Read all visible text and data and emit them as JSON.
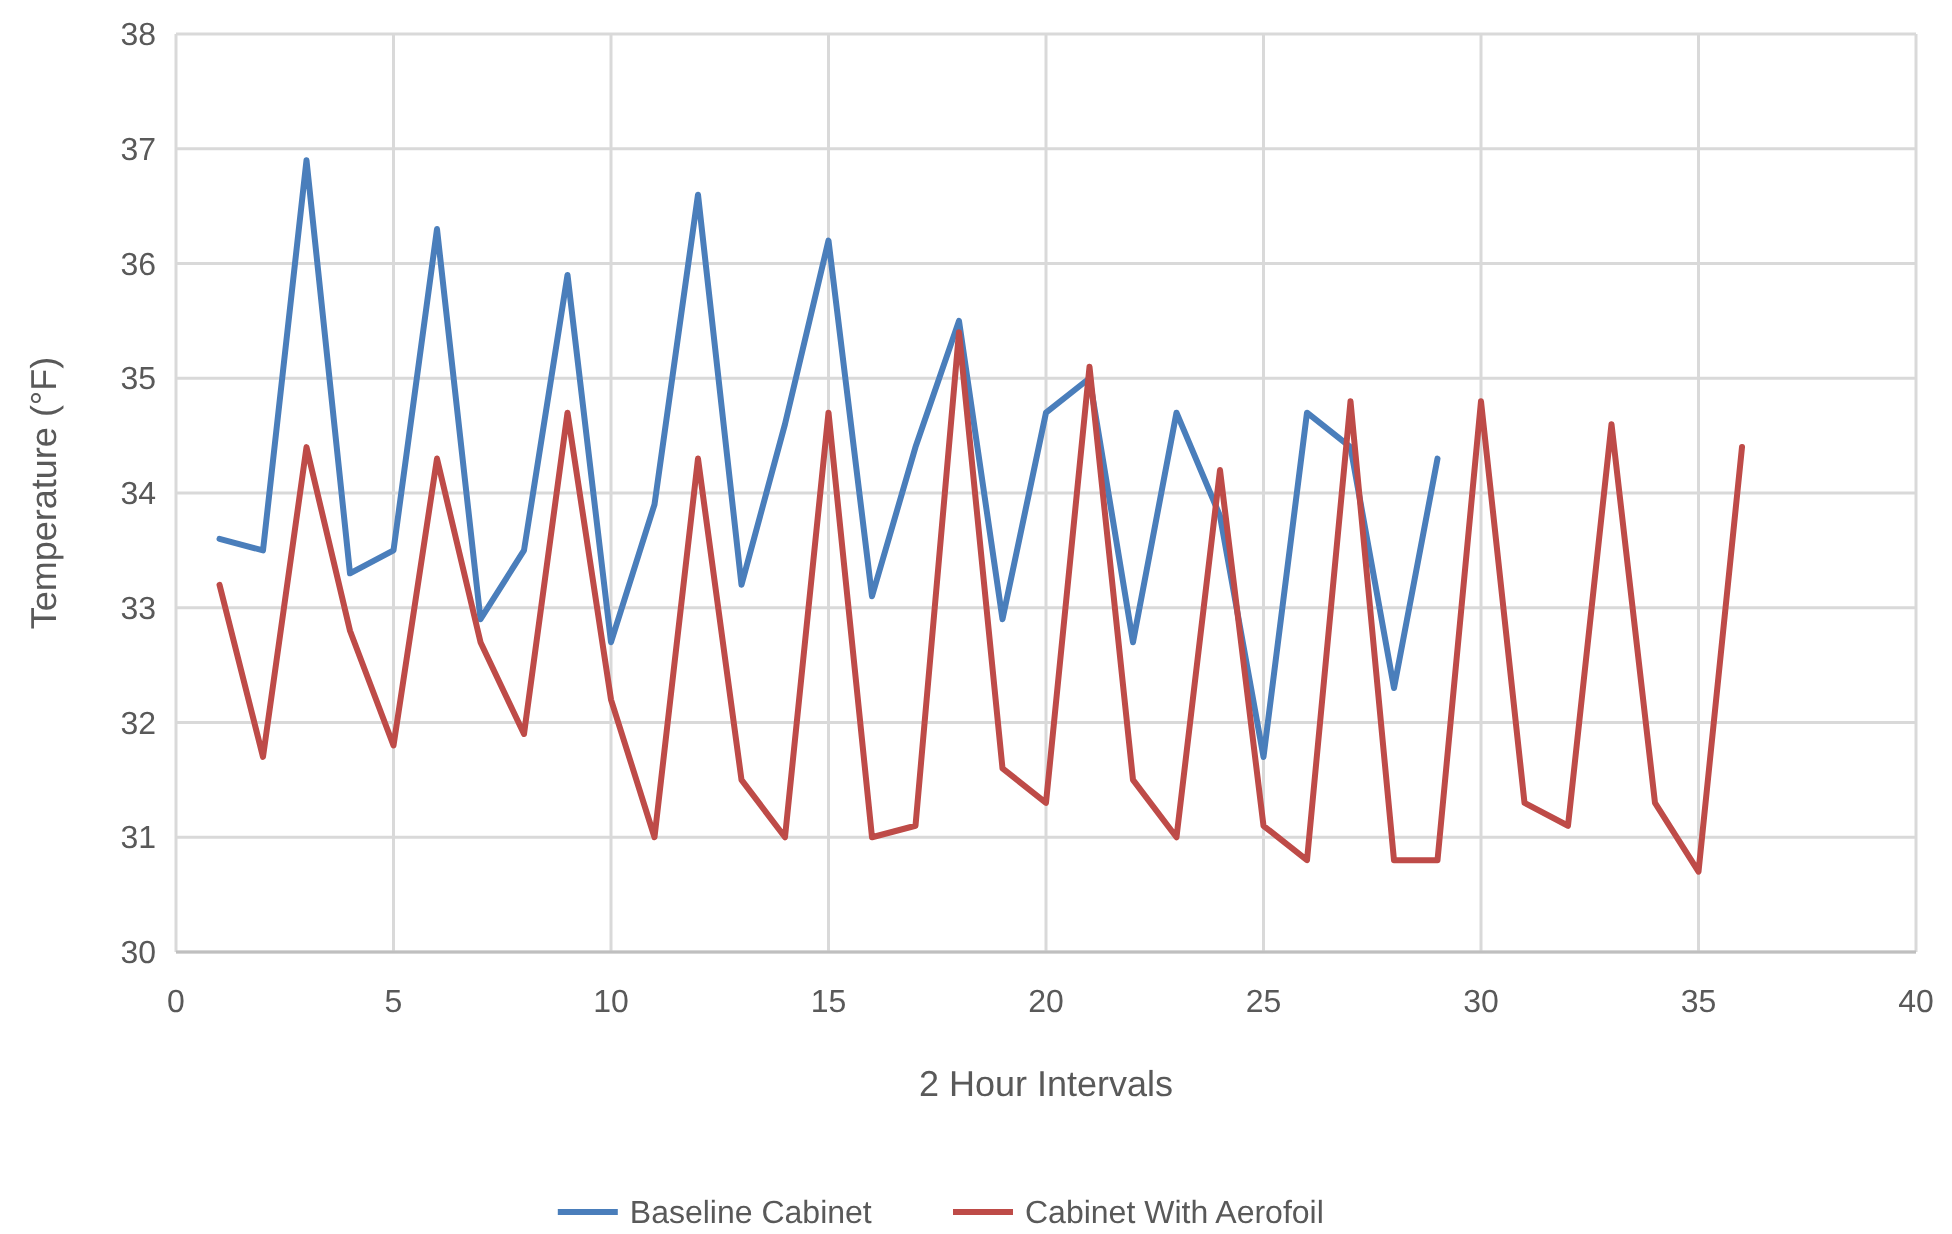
{
  "chart_data": {
    "type": "line",
    "xlabel": "2 Hour Intervals",
    "ylabel": "Temperature (°F)",
    "xlim": [
      0,
      40
    ],
    "xticks": [
      0,
      5,
      10,
      15,
      20,
      25,
      30,
      35,
      40
    ],
    "ylim": [
      30,
      38
    ],
    "yticks": [
      30,
      31,
      32,
      33,
      34,
      35,
      36,
      37,
      38
    ],
    "grid": true,
    "legend": "bottom",
    "marker": "none",
    "line_style": "solid",
    "series": [
      {
        "name": "Baseline Cabinet",
        "color": "#4a7ebb",
        "x": [
          1,
          2,
          3,
          4,
          5,
          6,
          7,
          8,
          9,
          10,
          11,
          12,
          13,
          14,
          15,
          16,
          17,
          18,
          19,
          20,
          21,
          22,
          23,
          24,
          25,
          26,
          27,
          28,
          29
        ],
        "values": [
          33.6,
          33.5,
          36.9,
          33.3,
          33.5,
          36.3,
          32.9,
          33.5,
          35.9,
          32.7,
          33.9,
          36.6,
          33.2,
          34.6,
          36.2,
          33.1,
          34.4,
          35.5,
          32.9,
          34.7,
          35.0,
          32.7,
          34.7,
          33.8,
          31.7,
          34.7,
          34.4,
          32.3,
          34.3
        ]
      },
      {
        "name": "Cabinet With Aerofoil",
        "color": "#be4b48",
        "x": [
          1,
          2,
          3,
          4,
          5,
          6,
          7,
          8,
          9,
          10,
          11,
          12,
          13,
          14,
          15,
          16,
          17,
          18,
          19,
          20,
          21,
          22,
          23,
          24,
          25,
          26,
          27,
          28,
          29,
          30,
          31,
          32,
          33,
          34,
          35,
          36
        ],
        "values": [
          33.2,
          31.7,
          34.4,
          32.8,
          31.8,
          34.3,
          32.7,
          31.9,
          34.7,
          32.2,
          31.0,
          34.3,
          31.5,
          31.0,
          34.7,
          31.0,
          31.1,
          35.4,
          31.6,
          31.3,
          35.1,
          31.5,
          31.0,
          34.2,
          31.1,
          30.8,
          34.8,
          30.8,
          30.8,
          34.8,
          31.3,
          31.1,
          34.6,
          31.3,
          30.7,
          34.4
        ]
      }
    ]
  }
}
